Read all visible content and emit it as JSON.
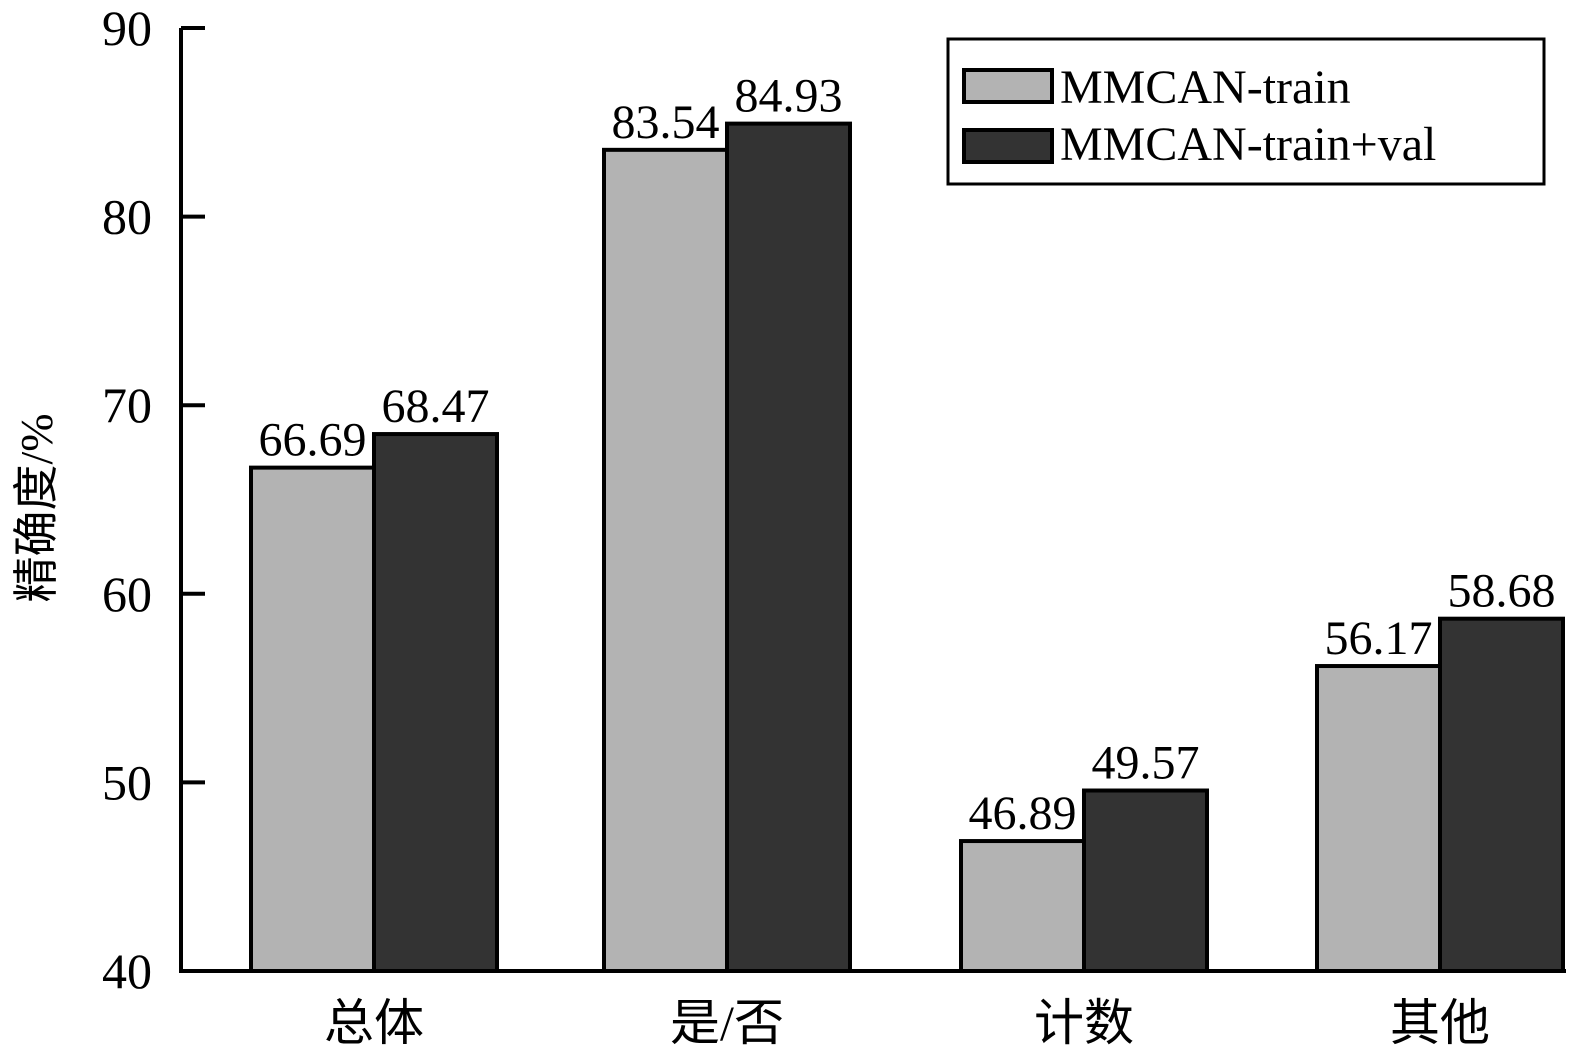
{
  "chart_data": {
    "type": "bar",
    "ylabel": "精确度/%",
    "xlabel": "",
    "ylim": [
      40,
      90
    ],
    "yticks": [
      40,
      50,
      60,
      70,
      80,
      90
    ],
    "categories": [
      "总体",
      "是/否",
      "计数",
      "其他"
    ],
    "series": [
      {
        "name": "MMCAN-train",
        "color": "#b3b3b3",
        "values": [
          66.69,
          83.54,
          46.89,
          56.17
        ]
      },
      {
        "name": "MMCAN-train+val",
        "color": "#333333",
        "values": [
          68.47,
          84.93,
          49.57,
          58.68
        ]
      }
    ],
    "data_labels": [
      [
        "66.69",
        "83.54",
        "46.89",
        "56.17"
      ],
      [
        "68.47",
        "84.93",
        "49.57",
        "58.68"
      ]
    ],
    "legend_position": "top-right",
    "grid": false
  }
}
